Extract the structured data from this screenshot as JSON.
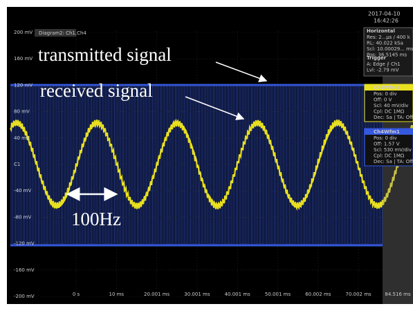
{
  "screen": {
    "timestamp": [
      "2017-04-10",
      "16:42:26"
    ],
    "diagram_tab": "Diagram2: Ch1,Ch4",
    "y_labels": [
      "200 mV",
      "160 mV",
      "120 mV",
      "80 mV",
      "40 mV",
      "C1",
      "-40 mV",
      "-80 mV",
      "-120 mV",
      "-160 mV",
      "-200 mV"
    ],
    "x_labels": [
      "0 s",
      "10 ms",
      "20.001 ms",
      "30.001 ms",
      "40.001 ms",
      "50.001 ms",
      "60.002 ms",
      "70.002 ms",
      "84.516 ms"
    ],
    "horizontal": {
      "title": "Horizontal",
      "lines": [
        "Res: 2...µs / 400 k",
        "RL: 40.022 kSa",
        "Scl: 10.00029... ms/",
        "Pos: 36.5145 ms"
      ]
    },
    "trigger": {
      "title": "Trigger",
      "lines": [
        "A: Edge ⨍ Ch1",
        "Lvl: -2.79 mV"
      ]
    },
    "ch1": {
      "title": "Ch1Wfm1",
      "lines": [
        "Pos: 0 div",
        "Off: 0 V",
        "Scl: 40 mV/div",
        "Cpl: DC 1MΩ",
        "Dec: Sa | TA: Off"
      ]
    },
    "ch4": {
      "title": "Ch4Wfm1",
      "lines": [
        "Pos: 0 div",
        "Off: 1.57 V",
        "Scl: 530 mV/div",
        "Cpl: DC 1MΩ",
        "Dec: Sa | TA: Off"
      ]
    }
  },
  "annotations": {
    "transmitted": "transmitted signal",
    "received": "received signal",
    "frequency": "100Hz"
  }
}
